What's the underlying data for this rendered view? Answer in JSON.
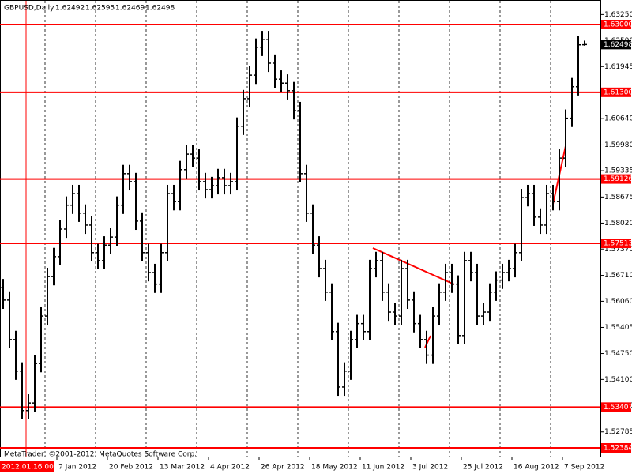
{
  "chart_data": {
    "type": "ohlc",
    "symbol": "GBPUSD,Daily",
    "bar_color": "#000000",
    "level_color": "#ff0000",
    "crosshair_time": "2012.01.16 00:00",
    "copyright": "MetaTrader, ©2001-2012, MetaQuotes Software Corp.",
    "xlim": [
      0,
      95
    ],
    "xticks": [
      {
        "value": 9,
        "label": "7 Jan 2012"
      },
      {
        "value": 17,
        "label": "20 Feb 2012"
      },
      {
        "value": 25,
        "label": "13 Mar 2012"
      },
      {
        "value": 33,
        "label": "4 Apr 2012"
      },
      {
        "value": 41,
        "label": "26 Apr 2012"
      },
      {
        "value": 49,
        "label": "18 May 2012"
      },
      {
        "value": 57,
        "label": "11 Jun 2012"
      },
      {
        "value": 65,
        "label": "3 Jul 2012"
      },
      {
        "value": 73,
        "label": "25 Jul 2012"
      },
      {
        "value": 81,
        "label": "16 Aug 2012"
      },
      {
        "value": 89,
        "label": "7 Sep 2012"
      }
    ],
    "ylim": [
      1.52166,
      1.63614
    ],
    "yticks": [
      {
        "value": 1.6325,
        "label": "1.63250"
      },
      {
        "value": 1.6259,
        "label": "1.62590"
      },
      {
        "value": 1.61945,
        "label": "1.61945"
      },
      {
        "value": 1.6064,
        "label": "1.60640"
      },
      {
        "value": 1.5998,
        "label": "1.59980"
      },
      {
        "value": 1.59335,
        "label": "1.59335"
      },
      {
        "value": 1.58675,
        "label": "1.58675"
      },
      {
        "value": 1.5802,
        "label": "1.58020"
      },
      {
        "value": 1.5737,
        "label": "1.57370"
      },
      {
        "value": 1.5671,
        "label": "1.56710"
      },
      {
        "value": 1.5606,
        "label": "1.56060"
      },
      {
        "value": 1.55405,
        "label": "1.55405"
      },
      {
        "value": 1.5475,
        "label": "1.54750"
      },
      {
        "value": 1.541,
        "label": "1.54100"
      },
      {
        "value": 1.5344,
        "label": "1.53440"
      },
      {
        "value": 1.52785,
        "label": "1.52785"
      }
    ],
    "levels": [
      {
        "value": 1.63,
        "label": "1.63000"
      },
      {
        "value": 1.613,
        "label": "1.61300"
      },
      1.59126,
      1.57513,
      1.53407,
      1.52384
    ],
    "bars": [
      [
        1.564,
        1.5662,
        1.5587,
        1.5609
      ],
      [
        1.5609,
        1.5631,
        1.5488,
        1.551
      ],
      [
        1.551,
        1.5532,
        1.5409,
        1.5431
      ],
      [
        1.5431,
        1.5453,
        1.531,
        1.5332
      ],
      [
        1.5332,
        1.5373,
        1.531,
        1.5351
      ],
      [
        1.5351,
        1.5472,
        1.5329,
        1.545
      ],
      [
        1.545,
        1.5591,
        1.5428,
        1.5569
      ],
      [
        1.5569,
        1.569,
        1.5547,
        1.5668
      ],
      [
        1.5668,
        1.574,
        1.5646,
        1.5718
      ],
      [
        1.5718,
        1.5809,
        1.5696,
        1.5787
      ],
      [
        1.5787,
        1.5869,
        1.5765,
        1.5847
      ],
      [
        1.5847,
        1.5898,
        1.5825,
        1.5876
      ],
      [
        1.5876,
        1.5898,
        1.5805,
        1.5827
      ],
      [
        1.5827,
        1.5849,
        1.5775,
        1.5797
      ],
      [
        1.5797,
        1.5819,
        1.5706,
        1.5728
      ],
      [
        1.5728,
        1.575,
        1.5686,
        1.5708
      ],
      [
        1.5708,
        1.5769,
        1.5686,
        1.5747
      ],
      [
        1.5747,
        1.5789,
        1.5725,
        1.5767
      ],
      [
        1.5767,
        1.5869,
        1.5745,
        1.5847
      ],
      [
        1.5847,
        1.5948,
        1.5825,
        1.5926
      ],
      [
        1.5926,
        1.5948,
        1.5884,
        1.5906
      ],
      [
        1.5906,
        1.5928,
        1.5785,
        1.5807
      ],
      [
        1.5807,
        1.5829,
        1.5706,
        1.5728
      ],
      [
        1.5728,
        1.575,
        1.5656,
        1.5678
      ],
      [
        1.5678,
        1.57,
        1.5627,
        1.5649
      ],
      [
        1.5649,
        1.575,
        1.5627,
        1.5728
      ],
      [
        1.5728,
        1.5898,
        1.5706,
        1.5876
      ],
      [
        1.5876,
        1.5898,
        1.5834,
        1.5856
      ],
      [
        1.5856,
        1.5958,
        1.5834,
        1.5936
      ],
      [
        1.5936,
        1.5997,
        1.5914,
        1.5975
      ],
      [
        1.5975,
        1.5997,
        1.5943,
        1.5965
      ],
      [
        1.5965,
        1.5987,
        1.5884,
        1.5906
      ],
      [
        1.5906,
        1.5928,
        1.5864,
        1.5886
      ],
      [
        1.5886,
        1.5918,
        1.5864,
        1.5896
      ],
      [
        1.5896,
        1.5938,
        1.5874,
        1.5916
      ],
      [
        1.5916,
        1.5938,
        1.5874,
        1.5896
      ],
      [
        1.5896,
        1.5928,
        1.5874,
        1.5906
      ],
      [
        1.5906,
        1.6067,
        1.5884,
        1.6045
      ],
      [
        1.6045,
        1.6136,
        1.6023,
        1.6114
      ],
      [
        1.6114,
        1.6195,
        1.6092,
        1.6173
      ],
      [
        1.6173,
        1.6265,
        1.6151,
        1.6243
      ],
      [
        1.6243,
        1.6284,
        1.6221,
        1.6262
      ],
      [
        1.6262,
        1.6284,
        1.6181,
        1.6203
      ],
      [
        1.6203,
        1.6225,
        1.6141,
        1.6163
      ],
      [
        1.6163,
        1.6185,
        1.6131,
        1.6153
      ],
      [
        1.6153,
        1.6175,
        1.6112,
        1.6134
      ],
      [
        1.6134,
        1.6156,
        1.6062,
        1.6084
      ],
      [
        1.6084,
        1.6106,
        1.5904,
        1.5926
      ],
      [
        1.5926,
        1.5948,
        1.5805,
        1.5827
      ],
      [
        1.5827,
        1.5849,
        1.5725,
        1.5747
      ],
      [
        1.5747,
        1.5769,
        1.5666,
        1.5688
      ],
      [
        1.5688,
        1.571,
        1.5607,
        1.5629
      ],
      [
        1.5629,
        1.5651,
        1.5508,
        1.553
      ],
      [
        1.553,
        1.5552,
        1.5369,
        1.5391
      ],
      [
        1.5391,
        1.5453,
        1.5369,
        1.5431
      ],
      [
        1.5431,
        1.5532,
        1.5409,
        1.551
      ],
      [
        1.551,
        1.5572,
        1.5488,
        1.555
      ],
      [
        1.555,
        1.5572,
        1.5508,
        1.553
      ],
      [
        1.553,
        1.571,
        1.5508,
        1.5688
      ],
      [
        1.5688,
        1.573,
        1.5666,
        1.5708
      ],
      [
        1.5708,
        1.573,
        1.5607,
        1.5629
      ],
      [
        1.5629,
        1.5651,
        1.5557,
        1.5579
      ],
      [
        1.5579,
        1.5601,
        1.5547,
        1.5569
      ],
      [
        1.5569,
        1.571,
        1.5547,
        1.5688
      ],
      [
        1.5688,
        1.571,
        1.5587,
        1.5609
      ],
      [
        1.5609,
        1.5631,
        1.5528,
        1.555
      ],
      [
        1.555,
        1.5572,
        1.5488,
        1.551
      ],
      [
        1.551,
        1.5532,
        1.5449,
        1.5471
      ],
      [
        1.5471,
        1.5591,
        1.5449,
        1.5569
      ],
      [
        1.5569,
        1.5651,
        1.5547,
        1.5629
      ],
      [
        1.5629,
        1.57,
        1.5607,
        1.5678
      ],
      [
        1.5678,
        1.57,
        1.5627,
        1.5649
      ],
      [
        1.5649,
        1.5671,
        1.5498,
        1.552
      ],
      [
        1.552,
        1.573,
        1.5498,
        1.5708
      ],
      [
        1.5708,
        1.573,
        1.5656,
        1.5678
      ],
      [
        1.5678,
        1.57,
        1.5547,
        1.5569
      ],
      [
        1.5569,
        1.5601,
        1.5547,
        1.5579
      ],
      [
        1.5579,
        1.5651,
        1.5557,
        1.5629
      ],
      [
        1.5629,
        1.5681,
        1.5607,
        1.5659
      ],
      [
        1.5659,
        1.57,
        1.5637,
        1.5678
      ],
      [
        1.5678,
        1.571,
        1.5656,
        1.5688
      ],
      [
        1.5688,
        1.575,
        1.5666,
        1.5728
      ],
      [
        1.5728,
        1.5888,
        1.5706,
        1.5866
      ],
      [
        1.5866,
        1.5898,
        1.5844,
        1.5876
      ],
      [
        1.5876,
        1.5898,
        1.5795,
        1.5817
      ],
      [
        1.5817,
        1.5839,
        1.5775,
        1.5797
      ],
      [
        1.5797,
        1.5898,
        1.5775,
        1.5876
      ],
      [
        1.5876,
        1.5898,
        1.5834,
        1.5856
      ],
      [
        1.5856,
        1.5987,
        1.5834,
        1.5965
      ],
      [
        1.5965,
        1.6087,
        1.5943,
        1.6065
      ],
      [
        1.6065,
        1.6166,
        1.6043,
        1.6144
      ],
      [
        1.6144,
        1.6271,
        1.6122,
        1.6249
      ],
      [
        1.62492,
        1.62595,
        1.62469,
        1.62498
      ]
    ]
  }
}
